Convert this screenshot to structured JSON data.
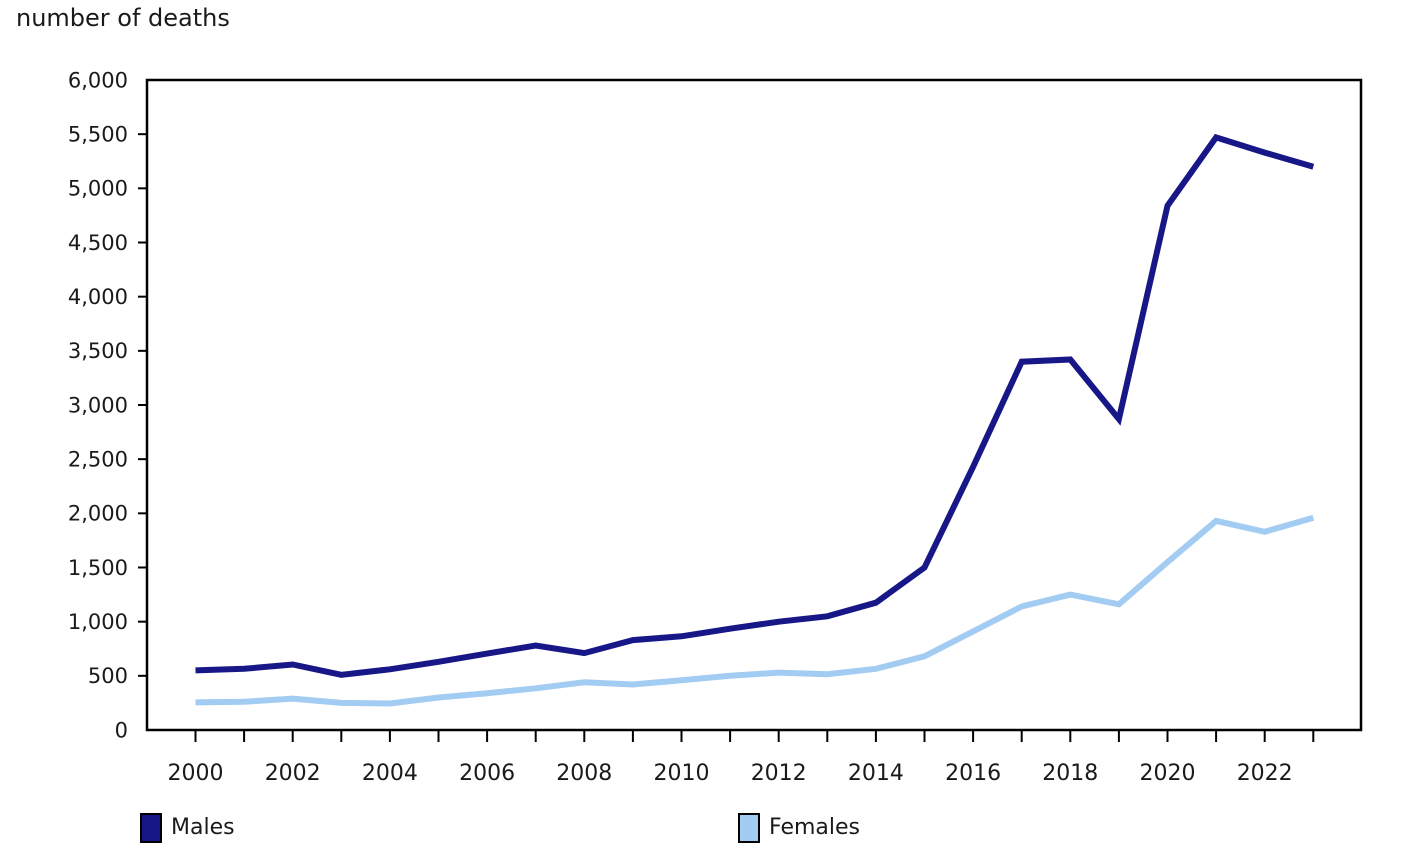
{
  "title": "number of deaths",
  "chart_data": {
    "type": "line",
    "title": "number of deaths",
    "xlabel": "",
    "ylabel": "number of deaths",
    "x": [
      2000,
      2001,
      2002,
      2003,
      2004,
      2005,
      2006,
      2007,
      2008,
      2009,
      2010,
      2011,
      2012,
      2013,
      2014,
      2015,
      2016,
      2017,
      2018,
      2019,
      2020,
      2021,
      2022,
      2023
    ],
    "series": [
      {
        "name": "Males",
        "color": "#171788",
        "values": [
          550,
          565,
          605,
          510,
          560,
          630,
          705,
          780,
          710,
          830,
          865,
          935,
          1000,
          1050,
          1175,
          1500,
          2430,
          3400,
          3420,
          2870,
          4840,
          5470,
          5330,
          5200
        ]
      },
      {
        "name": "Females",
        "color": "#a3ccf2",
        "values": [
          255,
          260,
          290,
          250,
          245,
          300,
          340,
          385,
          440,
          420,
          460,
          500,
          530,
          515,
          565,
          680,
          910,
          1140,
          1250,
          1160,
          1550,
          1930,
          1830,
          1960
        ]
      }
    ],
    "ylim": [
      0,
      6000
    ],
    "ytick_step": 500,
    "xtick_label_years": [
      2000,
      2002,
      2004,
      2006,
      2008,
      2010,
      2012,
      2014,
      2016,
      2018,
      2020,
      2022
    ],
    "grid": false,
    "legend_position": "bottom",
    "axis_color": "#000000",
    "text_color": "#1a1a1a"
  }
}
